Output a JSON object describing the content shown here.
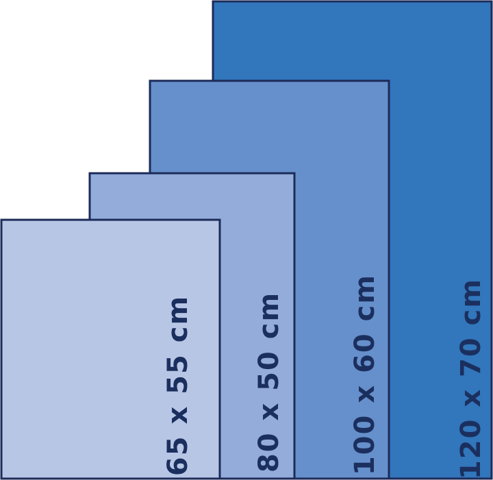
{
  "panels": [
    {
      "label": "120 x 70 cm"
    },
    {
      "label": "100 x 60 cm"
    },
    {
      "label": "80 x 50 cm"
    },
    {
      "label": "65 x 55 cm"
    }
  ]
}
